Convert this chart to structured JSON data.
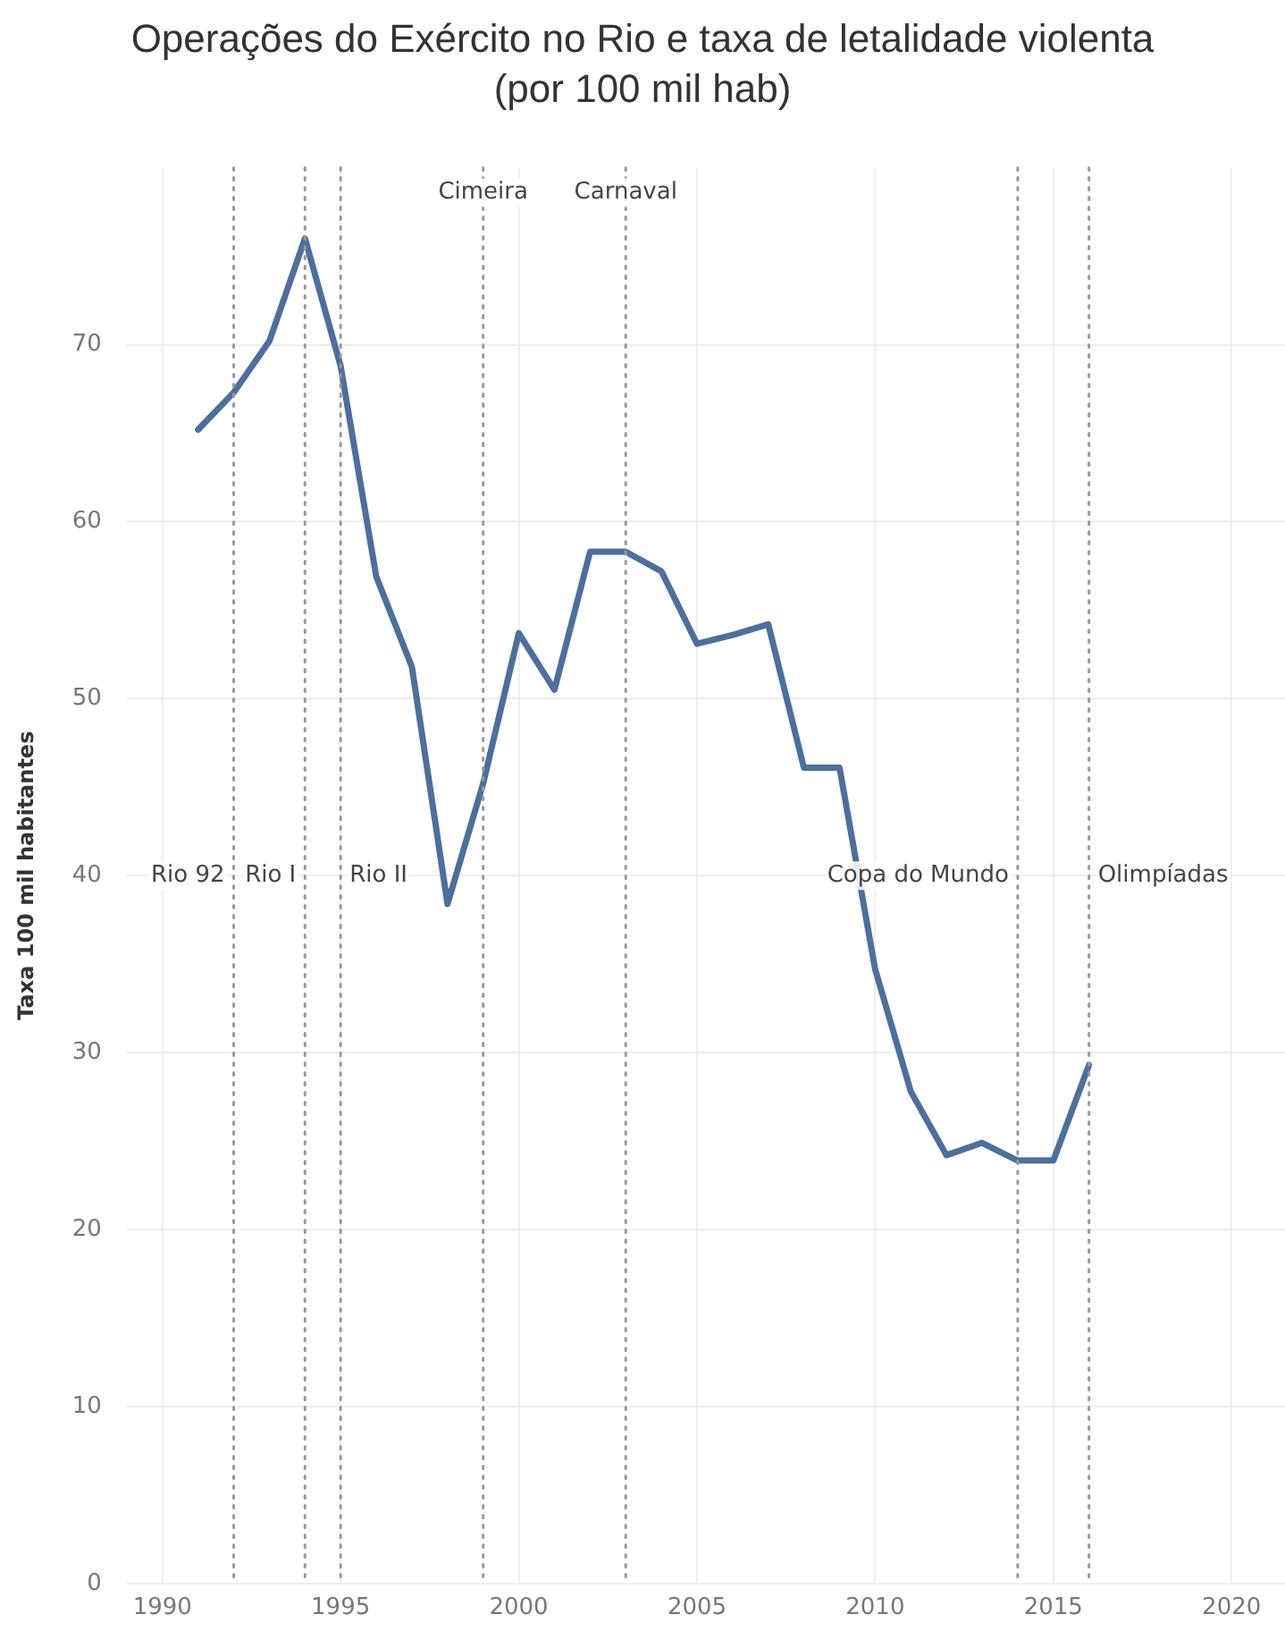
{
  "chart_data": {
    "type": "line",
    "title": "Operações do Exército no Rio e taxa de letalidade violenta",
    "subtitle": "(por 100 mil hab)",
    "ylabel": "Taxa 100 mil habitantes",
    "x": [
      1991,
      1992,
      1993,
      1994,
      1995,
      1996,
      1997,
      1998,
      1999,
      2000,
      2001,
      2002,
      2003,
      2004,
      2005,
      2006,
      2007,
      2008,
      2009,
      2010,
      2011,
      2012,
      2013,
      2014,
      2015,
      2016
    ],
    "series": [
      {
        "color": "#4e6f9b",
        "values": [
          65.2,
          67.3,
          70.2,
          76.0,
          68.8,
          56.9,
          51.8,
          38.4,
          45.2,
          53.7,
          50.5,
          58.3,
          58.3,
          57.2,
          53.1,
          53.6,
          54.2,
          46.1,
          46.1,
          34.7,
          27.8,
          24.2,
          24.9,
          23.9,
          23.9,
          29.3
        ]
      }
    ],
    "xlim": [
      1989,
      2021.5
    ],
    "xticks": [
      1990,
      1995,
      2000,
      2005,
      2010,
      2015,
      2020
    ],
    "ylim": [
      0,
      80
    ],
    "yticks": [
      0,
      10,
      20,
      30,
      40,
      50,
      60,
      70
    ],
    "grid": true,
    "legend": false,
    "marker": "none",
    "line_style": "solid",
    "ref_lines": [
      {
        "axis": "x",
        "value": 1992,
        "label": "Rio 92",
        "color": "#999999",
        "line_style": "dotted"
      },
      {
        "axis": "x",
        "value": 1994,
        "label": "Rio I",
        "color": "#999999",
        "line_style": "dotted"
      },
      {
        "axis": "x",
        "value": 1995,
        "label": "Rio II",
        "color": "#999999",
        "line_style": "dotted"
      },
      {
        "axis": "x",
        "value": 1999,
        "label": "Cimeira",
        "color": "#999999",
        "line_style": "dotted"
      },
      {
        "axis": "x",
        "value": 2003,
        "label": "Carnaval",
        "color": "#999999",
        "line_style": "dotted"
      },
      {
        "axis": "x",
        "value": 2014,
        "label": "Copa do Mundo",
        "color": "#999999",
        "line_style": "dotted"
      },
      {
        "axis": "x",
        "value": 2016,
        "label": "Olimpíadas",
        "color": "#999999",
        "line_style": "dotted"
      }
    ]
  }
}
